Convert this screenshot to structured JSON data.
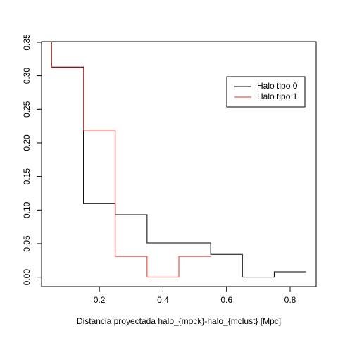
{
  "chart_data": {
    "type": "step",
    "xlabel": "Distancia proyectada halo_{mock}-halo_{mclust} [Mpc]",
    "xlim": [
      0.018,
      0.882
    ],
    "xticks": [
      0.2,
      0.4,
      0.6,
      0.8
    ],
    "ylim": [
      -0.014,
      0.351
    ],
    "yticks": [
      {
        "value": 0,
        "label": "0.00"
      },
      {
        "value": 0.05,
        "label": "0.05"
      },
      {
        "value": 0.1,
        "label": "0.10"
      },
      {
        "value": 0.15,
        "label": "0.15"
      },
      {
        "value": 0.2,
        "label": "0.20"
      },
      {
        "value": 0.25,
        "label": "0.25"
      },
      {
        "value": 0.3,
        "label": "0.30"
      },
      {
        "value": 0.35,
        "label": "0.35"
      }
    ],
    "legend": "topright",
    "series": [
      {
        "name": "Halo tipo 0",
        "color": "#000000",
        "x": [
          0.05,
          0.15,
          0.25,
          0.35,
          0.45,
          0.55,
          0.65,
          0.75,
          0.85
        ],
        "values": [
          0.4,
          0.313,
          0.11,
          0.093,
          0.051,
          0.051,
          0.034,
          0,
          0.008
        ]
      },
      {
        "name": "Halo tipo 1",
        "color": "#e8302a",
        "x": [
          0.05,
          0.15,
          0.25,
          0.35,
          0.45,
          0.55
        ],
        "values": [
          0.4,
          0.312,
          0.219,
          0.031,
          0,
          0.031
        ]
      }
    ]
  }
}
